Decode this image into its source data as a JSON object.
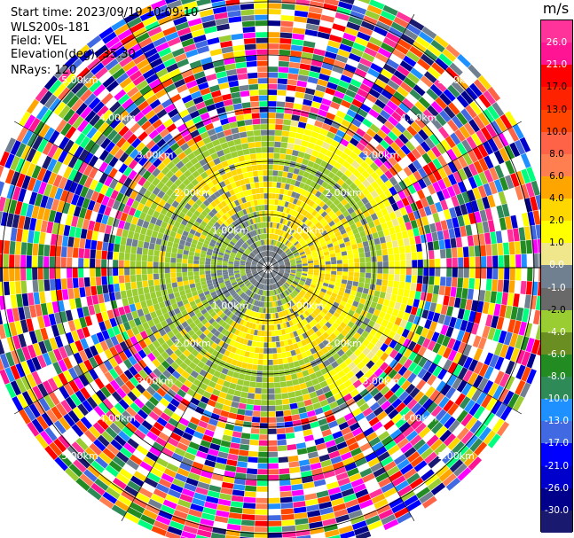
{
  "info": {
    "start_time": "Start time: 2023/09/19 10:09:10",
    "instrument": "WLS200s-181",
    "field": "Field: VEL",
    "elevation": "Elevation(deg): 35.30",
    "nrays": "NRays: 120"
  },
  "colorbar": {
    "unit": "m/s",
    "ticks": [
      "26.0",
      "21.0",
      "17.0",
      "13.0",
      "10.0",
      "8.0",
      "6.0",
      "4.0",
      "2.0",
      "1.0",
      "0.0",
      "-1.0",
      "-2.0",
      "-4.0",
      "-6.0",
      "-8.0",
      "-10.0",
      "-13.0",
      "-17.0",
      "-21.0",
      "-26.0",
      "-30.0"
    ],
    "colors": [
      "#ff3399",
      "#ff1493",
      "#ff0000",
      "#ff2200",
      "#ff4500",
      "#ff6347",
      "#ff7f50",
      "#ffa500",
      "#ffd700",
      "#ffff00",
      "#f0e68c",
      "#708090",
      "#696969",
      "#9acd32",
      "#6b8e23",
      "#228b22",
      "#2e8b57",
      "#1e90ff",
      "#4169e1",
      "#0000ff",
      "#0000cd",
      "#00008b",
      "#191970"
    ]
  },
  "chart_data": {
    "type": "ppi",
    "field": "VEL",
    "units": "m/s",
    "n_rays": 120,
    "elevation_deg": 35.3,
    "range_rings_km": [
      "1.00km",
      "2.00km",
      "3.00km",
      "4.00km",
      "5.00km"
    ],
    "max_range_km": 5.5,
    "color_scale": [
      26,
      21,
      17,
      13,
      10,
      8,
      6,
      4,
      2,
      1,
      0,
      -1,
      -2,
      -4,
      -6,
      -8,
      -10,
      -13,
      -17,
      -21,
      -26,
      -30
    ],
    "velocity_pattern": {
      "inner_yellow_zone_km": [
        0.4,
        1.9
      ],
      "green_zone_km": [
        1.2,
        2.8
      ],
      "noise_beyond_km": 2.8
    }
  }
}
